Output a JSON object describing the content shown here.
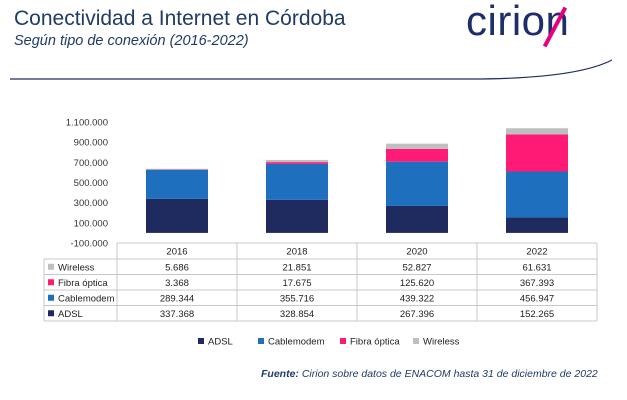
{
  "header": {
    "title": "Conectividad a Internet en Córdoba",
    "subtitle": "Según tipo de conexión (2016-2022)",
    "logo_text": "cirion"
  },
  "footer": {
    "source_label": "Fuente:",
    "source_text": " Cirion sobre datos de ENACOM hasta 31 de diciembre de 2022"
  },
  "colors": {
    "ADSL": "#1f2b5e",
    "Cablemodem": "#1f6fbf",
    "Fibra óptica": "#ff1a75",
    "Wireless": "#bfbfbf",
    "accent": "#1f2d6b"
  },
  "chart_data": {
    "type": "bar",
    "stacked": true,
    "categories": [
      "2016",
      "2018",
      "2020",
      "2022"
    ],
    "series": [
      {
        "name": "ADSL",
        "values": [
          337368,
          328854,
          267396,
          152265
        ]
      },
      {
        "name": "Cablemodem",
        "values": [
          289344,
          355716,
          439322,
          456947
        ]
      },
      {
        "name": "Fibra óptica",
        "values": [
          3368,
          17675,
          125620,
          367393
        ]
      },
      {
        "name": "Wireless",
        "values": [
          5686,
          21851,
          52827,
          61631
        ]
      }
    ],
    "table_rows_order": [
      "Wireless",
      "Fibra óptica",
      "Cablemodem",
      "ADSL"
    ],
    "table_values": {
      "Wireless": [
        "5.686",
        "21.851",
        "52.827",
        "61.631"
      ],
      "Fibra óptica": [
        "3.368",
        "17.675",
        "125.620",
        "367.393"
      ],
      "Cablemodem": [
        "289.344",
        "355.716",
        "439.322",
        "456.947"
      ],
      "ADSL": [
        "337.368",
        "328.854",
        "267.396",
        "152.265"
      ]
    },
    "ylim": [
      -100000,
      1100000
    ],
    "yticks": [
      -100000,
      100000,
      300000,
      500000,
      700000,
      900000,
      1100000
    ],
    "ytick_labels": [
      "-100.000",
      "100.000",
      "300.000",
      "500.000",
      "700.000",
      "900.000",
      "1.100.000"
    ],
    "legend_order": [
      "ADSL",
      "Cablemodem",
      "Fibra óptica",
      "Wireless"
    ],
    "legend_position": "bottom",
    "grid": false
  }
}
